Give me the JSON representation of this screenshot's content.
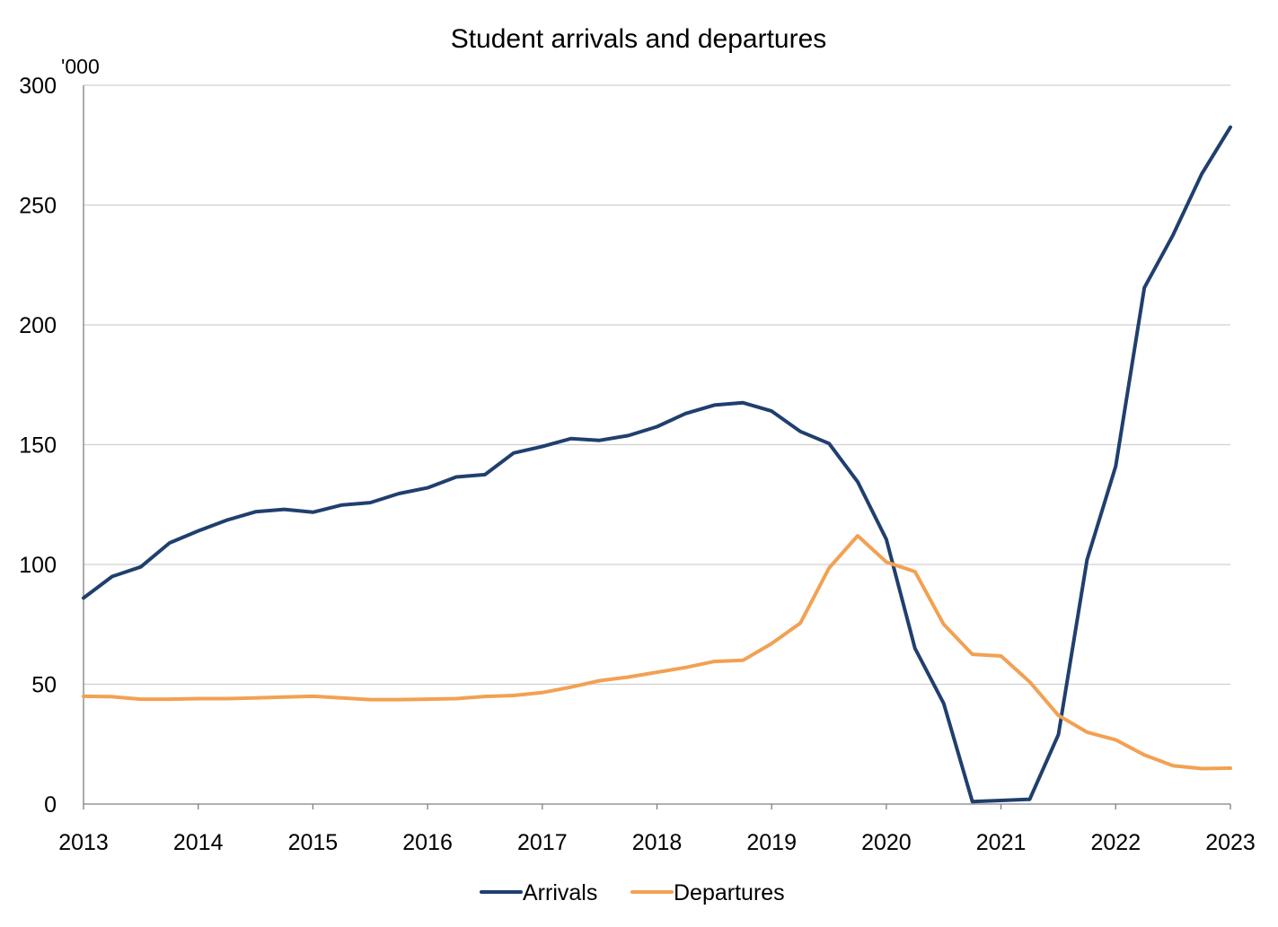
{
  "chart_data": {
    "type": "line",
    "title": "Student arrivals and departures",
    "ylabel": "'000",
    "xlabel": "",
    "ylim": [
      0,
      300
    ],
    "xlim": [
      2013,
      2023
    ],
    "yticks": [
      0,
      50,
      100,
      150,
      200,
      250,
      300
    ],
    "xticks": [
      2013,
      2014,
      2015,
      2016,
      2017,
      2018,
      2019,
      2020,
      2021,
      2022,
      2023
    ],
    "grid": "horizontal",
    "legend_position": "bottom-center",
    "x": [
      2013.0,
      2013.25,
      2013.5,
      2013.75,
      2014.0,
      2014.25,
      2014.5,
      2014.75,
      2015.0,
      2015.25,
      2015.5,
      2015.75,
      2016.0,
      2016.25,
      2016.5,
      2016.75,
      2017.0,
      2017.25,
      2017.5,
      2017.75,
      2018.0,
      2018.25,
      2018.5,
      2018.75,
      2019.0,
      2019.25,
      2019.5,
      2019.75,
      2020.0,
      2020.25,
      2020.5,
      2020.75,
      2021.0,
      2021.25,
      2021.5,
      2021.75,
      2022.0,
      2022.25,
      2022.5,
      2022.75,
      2023.0
    ],
    "series": [
      {
        "name": "Arrivals",
        "color": "#203f6e",
        "values": [
          86,
          95,
          99,
          109,
          114,
          118.5,
          122,
          123,
          121.8,
          124.8,
          125.8,
          129.6,
          132,
          136.5,
          137.5,
          146.5,
          149.2,
          152.5,
          151.8,
          153.8,
          157.5,
          163,
          166.5,
          167.5,
          164,
          155.5,
          150.5,
          134.5,
          110.5,
          65,
          42,
          1,
          1.5,
          2,
          29,
          102,
          141,
          215.5,
          237.5,
          263,
          282.5
        ]
      },
      {
        "name": "Departures",
        "color": "#f2a152",
        "values": [
          45,
          44.8,
          43.8,
          43.8,
          44,
          44,
          44.3,
          44.7,
          45,
          44.3,
          43.6,
          43.6,
          43.8,
          44,
          44.9,
          45.3,
          46.5,
          48.8,
          51.5,
          53,
          55,
          57,
          59.5,
          60,
          67,
          75.5,
          98.5,
          112,
          101,
          97,
          75,
          62.5,
          61.8,
          51,
          37,
          30,
          26.8,
          20.5,
          16,
          14.8,
          15
        ]
      }
    ]
  }
}
